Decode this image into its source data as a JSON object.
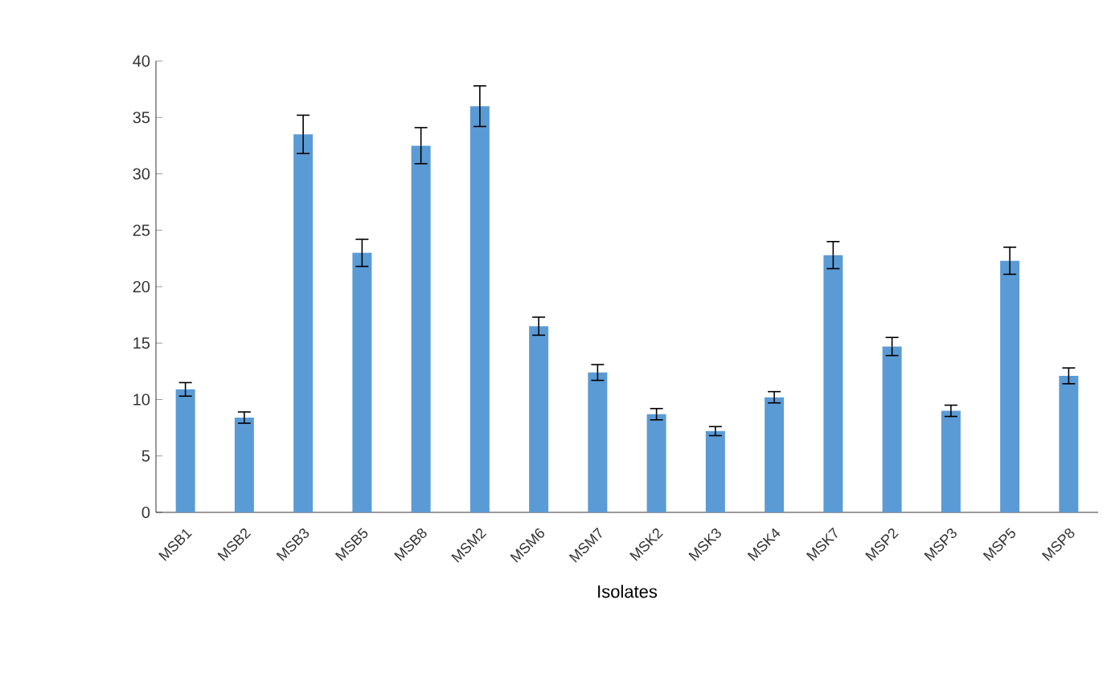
{
  "chart_data": {
    "type": "bar",
    "xlabel": "Isolates",
    "categories": [
      "MSB1",
      "MSB2",
      "MSB3",
      "MSB5",
      "MSB8",
      "MSM2",
      "MSM6",
      "MSM7",
      "MSK2",
      "MSK3",
      "MSK4",
      "MSK7",
      "MSP2",
      "MSP3",
      "MSP5",
      "MSP8"
    ],
    "values": [
      10.9,
      8.4,
      33.5,
      23,
      32.5,
      36,
      16.5,
      12.4,
      8.7,
      7.2,
      10.2,
      22.8,
      14.7,
      9,
      22.3,
      12.1
    ],
    "errors": [
      0.6,
      0.5,
      1.7,
      1.2,
      1.6,
      1.8,
      0.8,
      0.7,
      0.5,
      0.4,
      0.5,
      1.2,
      0.8,
      0.5,
      1.2,
      0.7
    ],
    "color": "#5b9bd5",
    "ylim": [
      0,
      40
    ],
    "yticks": [
      0,
      5,
      10,
      15,
      20,
      25,
      30,
      35,
      40
    ]
  }
}
